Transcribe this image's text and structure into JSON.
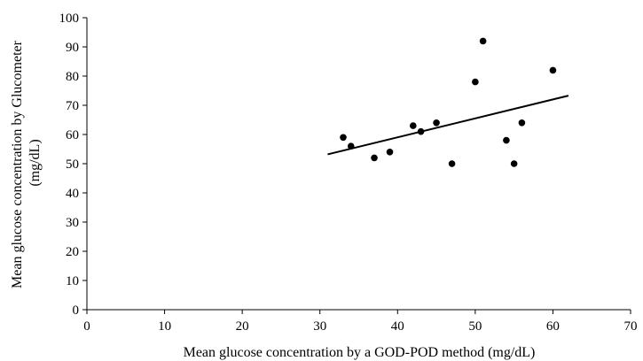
{
  "chart_data": {
    "type": "scatter",
    "title": "",
    "xlabel": "Mean glucose concentration by a GOD-POD method (mg/dL)",
    "ylabel_line1": "Mean glucose concentration by Glucometer",
    "ylabel_line2": "(mg/dL)",
    "xlim": [
      0,
      70
    ],
    "ylim": [
      0,
      100
    ],
    "x_ticks": [
      "0",
      "10",
      "20",
      "30",
      "40",
      "50",
      "60",
      "70"
    ],
    "y_ticks": [
      "0",
      "10",
      "20",
      "30",
      "40",
      "50",
      "60",
      "70",
      "80",
      "90",
      "100"
    ],
    "grid": false,
    "legend": "none",
    "series": [
      {
        "points": [
          {
            "x": 33,
            "y": 59
          },
          {
            "x": 34,
            "y": 56
          },
          {
            "x": 37,
            "y": 52
          },
          {
            "x": 39,
            "y": 54
          },
          {
            "x": 42,
            "y": 63
          },
          {
            "x": 43,
            "y": 61
          },
          {
            "x": 45,
            "y": 64
          },
          {
            "x": 47,
            "y": 50
          },
          {
            "x": 50,
            "y": 78
          },
          {
            "x": 51,
            "y": 92
          },
          {
            "x": 54,
            "y": 58
          },
          {
            "x": 55,
            "y": 50
          },
          {
            "x": 56,
            "y": 64
          },
          {
            "x": 60,
            "y": 82
          }
        ]
      }
    ],
    "trendline": {
      "x": [
        31,
        62
      ],
      "y": [
        53.2,
        73.3
      ]
    },
    "colors": {
      "marker": "#000000",
      "axis": "#000000",
      "trendline": "#000000"
    }
  }
}
